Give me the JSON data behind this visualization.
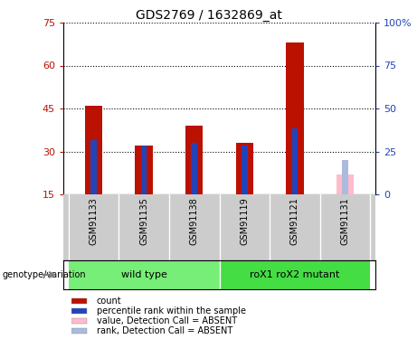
{
  "title": "GDS2769 / 1632869_at",
  "samples": [
    "GSM91133",
    "GSM91135",
    "GSM91138",
    "GSM91119",
    "GSM91121",
    "GSM91131"
  ],
  "count_values": [
    46,
    32,
    39,
    33,
    68,
    null
  ],
  "rank_values": [
    34,
    32,
    33,
    32,
    38,
    null
  ],
  "absent_count": [
    null,
    null,
    null,
    null,
    null,
    22
  ],
  "absent_rank": [
    null,
    null,
    null,
    null,
    null,
    27
  ],
  "ylim_left": [
    15,
    75
  ],
  "ylim_right": [
    0,
    100
  ],
  "yticks_left": [
    15,
    30,
    45,
    60,
    75
  ],
  "yticks_right": [
    0,
    25,
    50,
    75,
    100
  ],
  "ytick_labels_right": [
    "0",
    "25",
    "50",
    "75",
    "100%"
  ],
  "bar_width": 0.35,
  "rank_bar_width": 0.12,
  "count_color": "#bb1100",
  "rank_color": "#2244bb",
  "absent_count_color": "#ffbbcc",
  "absent_rank_color": "#aabbdd",
  "grid_color": "#000000",
  "sample_label_bg": "#cccccc",
  "wt_color": "#77ee77",
  "mut_color": "#44dd44",
  "legend_items": [
    {
      "label": "count",
      "color": "#bb1100"
    },
    {
      "label": "percentile rank within the sample",
      "color": "#2244bb"
    },
    {
      "label": "value, Detection Call = ABSENT",
      "color": "#ffbbcc"
    },
    {
      "label": "rank, Detection Call = ABSENT",
      "color": "#aabbdd"
    }
  ]
}
